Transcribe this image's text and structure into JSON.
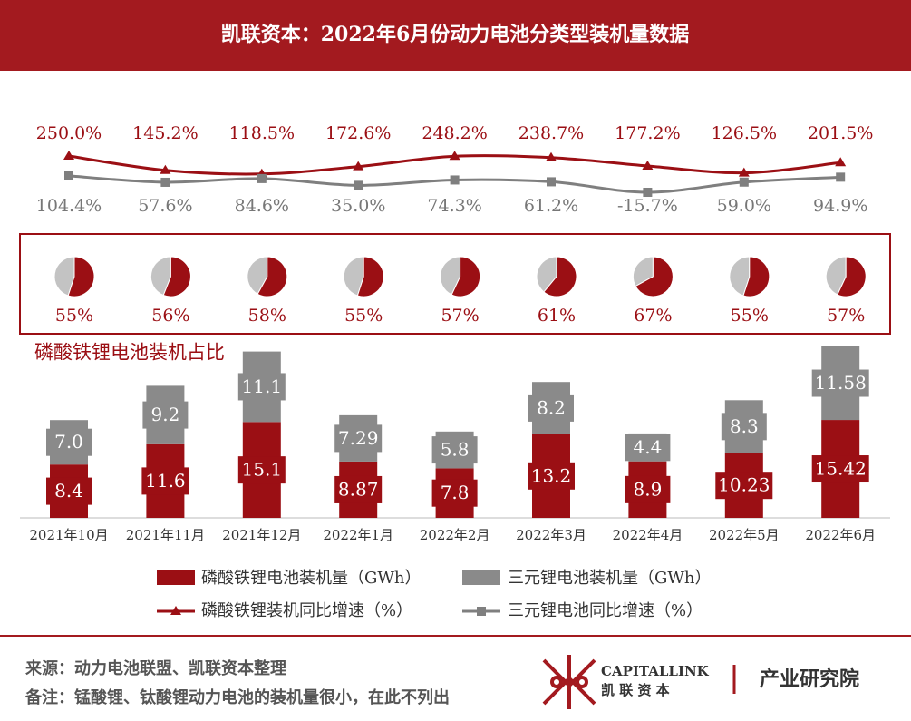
{
  "chart_data": {
    "type": "bar",
    "stacked": true,
    "title": "凯联资本：2022年6月份动力电池分类型装机量数据",
    "categories": [
      "2021年10月",
      "2021年11月",
      "2021年12月",
      "2022年1月",
      "2022年2月",
      "2022年3月",
      "2022年4月",
      "2022年5月",
      "2022年6月"
    ],
    "series": [
      {
        "name": "磷酸铁锂电池装机量（GWh）",
        "color": "#9b0f14",
        "values": [
          8.4,
          11.6,
          15.1,
          8.87,
          7.8,
          13.2,
          8.9,
          10.23,
          15.42
        ]
      },
      {
        "name": "三元锂电池装机量（GWh）",
        "color": "#8a8a8a",
        "values": [
          7,
          9.2,
          11.1,
          7.29,
          5.8,
          8.2,
          4.4,
          8.3,
          11.58
        ],
        "value_labels": [
          "7.0",
          "9.2",
          "11.1",
          "7.29",
          "5.8",
          "8.2",
          "4.4",
          "8.3",
          "11.58"
        ]
      }
    ],
    "line_series": [
      {
        "name": "磷酸铁锂装机同比增速（%）",
        "color": "#9b0f14",
        "marker": "triangle",
        "values": [
          250,
          145.2,
          118.5,
          172.6,
          248.2,
          238.7,
          177.2,
          126.5,
          201.5
        ],
        "value_labels": [
          "250.0%",
          "145.2%",
          "118.5%",
          "172.6%",
          "248.2%",
          "238.7%",
          "177.2%",
          "126.5%",
          "201.5%"
        ]
      },
      {
        "name": "三元锂电池同比增速（%）",
        "color": "#7f7f7f",
        "marker": "square",
        "values": [
          104.4,
          57.6,
          84.6,
          35,
          74.3,
          61.2,
          -15.7,
          59,
          94.9
        ],
        "value_labels": [
          "104.4%",
          "57.6%",
          "84.6%",
          "35.0%",
          "74.3%",
          "61.2%",
          "-15.7%",
          "59.0%",
          "94.9%"
        ]
      }
    ],
    "pies": {
      "title": "磷酸铁锂电池装机占比",
      "color": "#9b0f14",
      "rest_color": "#c3c3c3",
      "values": [
        55,
        56,
        58,
        55,
        57,
        61,
        67,
        55,
        57
      ],
      "value_labels": [
        "55%",
        "56%",
        "58%",
        "55%",
        "57%",
        "61%",
        "67%",
        "55%",
        "57%"
      ]
    }
  },
  "footer": {
    "source": "来源：动力电池联盟、凯联资本整理",
    "note": "备注：锰酸锂、钛酸锂动力电池的装机量很小，在此不列出"
  },
  "logo": {
    "name": "CAPITALLINK",
    "cn": "凯 联 资 本",
    "dept": "产业研究院"
  }
}
